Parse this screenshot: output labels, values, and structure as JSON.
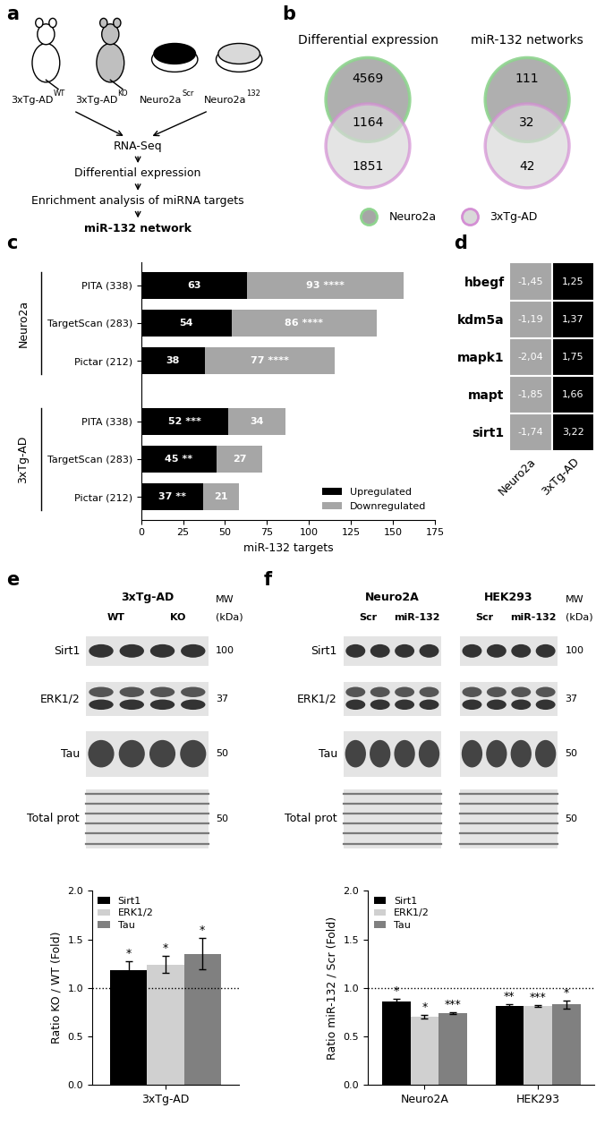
{
  "schematic": {
    "panel": "a",
    "sources": [
      {
        "base": "3xTg-AD",
        "sup": "WT",
        "kind": "mouse",
        "color": "#ffffff"
      },
      {
        "base": "3xTg-AD",
        "sup": "KO",
        "kind": "mouse",
        "color": "#bfbfbf"
      },
      {
        "base": "Neuro2a",
        "sup": "Scr",
        "kind": "dish",
        "color": "#000000"
      },
      {
        "base": "Neuro2a",
        "sup": "132",
        "kind": "dish",
        "color": "#d9d9d9"
      }
    ],
    "steps": [
      "RNA-Seq",
      "Differential expression",
      "Enrichment analysis of miRNA targets",
      "miR-132 network"
    ]
  },
  "venn": {
    "panel": "b",
    "diagrams": [
      {
        "title": "Differential expression",
        "values": [
          4569,
          1164,
          1851
        ]
      },
      {
        "title": "miR-132 networks",
        "values": [
          111,
          32,
          42
        ]
      }
    ],
    "sets": [
      {
        "name": "Neuro2a",
        "edge_color": "#8fd48f",
        "fill_color": "#a6a6a6"
      },
      {
        "name": "3xTg-AD",
        "edge_color": "#d48fd4",
        "fill_color": "#d9d9d9"
      }
    ]
  },
  "chart_data": [
    {
      "panel": "c",
      "type": "bar",
      "orientation": "horizontal",
      "stacked": true,
      "data_labels": true,
      "categories": [
        "PITA (338)",
        "TargetScan (283)",
        "Pictar (212)",
        "PITA (338)",
        "TargetScan (283)",
        "Pictar (212)"
      ],
      "groups": [
        "Neuro2a",
        "Neuro2a",
        "Neuro2a",
        "3xTg-AD",
        "3xTg-AD",
        "3xTg-AD"
      ],
      "series": [
        {
          "name": "Upregulated",
          "color": "#000000",
          "values": [
            63,
            54,
            38,
            52,
            45,
            37
          ],
          "significance": [
            null,
            null,
            null,
            "***",
            "**",
            "**"
          ]
        },
        {
          "name": "Downregulated",
          "color": "#a6a6a6",
          "values": [
            93,
            86,
            77,
            34,
            27,
            21
          ],
          "significance": [
            "****",
            "****",
            "****",
            null,
            null,
            null
          ]
        }
      ],
      "x_label": "miR-132 targets",
      "xlim": [
        0,
        175
      ],
      "xticks": [
        0,
        25,
        50,
        75,
        100,
        125,
        150,
        175
      ],
      "legend": "lower right"
    },
    {
      "panel": "d",
      "type": "heatmap",
      "data_labels": true,
      "categories": [
        "hbegf",
        "kdm5a",
        "mapk1",
        "mapt",
        "sirt1"
      ],
      "series": [
        {
          "name": "Neuro2a",
          "color": "#a6a6a6",
          "values": [
            -1.45,
            -1.19,
            -2.04,
            -1.85,
            -1.74
          ],
          "value_labels": [
            "-1,45",
            "-1,19",
            "-2,04",
            "-1,85",
            "-1,74"
          ]
        },
        {
          "name": "3xTg-AD",
          "color": "#000000",
          "values": [
            1.25,
            1.37,
            1.75,
            1.66,
            3.22
          ],
          "value_labels": [
            "1,25",
            "1,37",
            "1,75",
            "1,66",
            "3,22"
          ]
        }
      ]
    },
    {
      "type": "bar",
      "categories": [
        "3xTg-AD"
      ],
      "series": [
        {
          "name": "Sirt1",
          "color": "#000000",
          "values": [
            1.18
          ],
          "errors": [
            0.09
          ],
          "significance": [
            "*"
          ]
        },
        {
          "name": "ERK1/2",
          "color": "#d0d0d0",
          "values": [
            1.24
          ],
          "errors": [
            0.09
          ],
          "significance": [
            "*"
          ]
        },
        {
          "name": "Tau",
          "color": "#808080",
          "values": [
            1.35
          ],
          "errors": [
            0.16
          ],
          "significance": [
            "*"
          ]
        }
      ],
      "y_label": "Ratio KO / WT (Fold)",
      "ylim": [
        0,
        2.0
      ],
      "yticks": [
        0.0,
        0.5,
        1.0,
        1.5,
        2.0
      ],
      "reference_line": 1.0,
      "legend": "upper left"
    },
    {
      "type": "bar",
      "categories": [
        "Neuro2A",
        "HEK293"
      ],
      "series": [
        {
          "name": "Sirt1",
          "color": "#000000",
          "values": [
            0.86,
            0.81
          ],
          "errors": [
            0.03,
            0.02
          ],
          "significance": [
            "*",
            "**"
          ]
        },
        {
          "name": "ERK1/2",
          "color": "#d0d0d0",
          "values": [
            0.7,
            0.81
          ],
          "errors": [
            0.02,
            0.01
          ],
          "significance": [
            "*",
            "***"
          ]
        },
        {
          "name": "Tau",
          "color": "#808080",
          "values": [
            0.74,
            0.83
          ],
          "errors": [
            0.01,
            0.04
          ],
          "significance": [
            "***",
            "*"
          ]
        }
      ],
      "y_label": "Ratio miR-132 / Scr (Fold)",
      "ylim": [
        0,
        2.0
      ],
      "yticks": [
        0.0,
        0.5,
        1.0,
        1.5,
        2.0
      ],
      "reference_line": 1.0,
      "legend": "upper left"
    }
  ],
  "blots": {
    "e": {
      "panel": "e",
      "cells": [
        {
          "name": "3xTg-AD",
          "groups": [
            "WT",
            "KO"
          ]
        }
      ],
      "rows": [
        "Sirt1",
        "ERK1/2",
        "Tau",
        "Total prot"
      ],
      "mw": [
        100,
        37,
        50,
        50
      ],
      "mw_title": [
        "MW",
        "(kDa)"
      ]
    },
    "f": {
      "panel": "f",
      "cells": [
        {
          "name": "Neuro2A",
          "groups": [
            "Scr",
            "miR-132"
          ]
        },
        {
          "name": "HEK293",
          "groups": [
            "Scr",
            "miR-132"
          ]
        }
      ],
      "rows": [
        "Sirt1",
        "ERK1/2",
        "Tau",
        "Total prot"
      ],
      "mw": [
        100,
        37,
        50,
        50
      ],
      "mw_title": [
        "MW",
        "(kDa)"
      ]
    }
  }
}
